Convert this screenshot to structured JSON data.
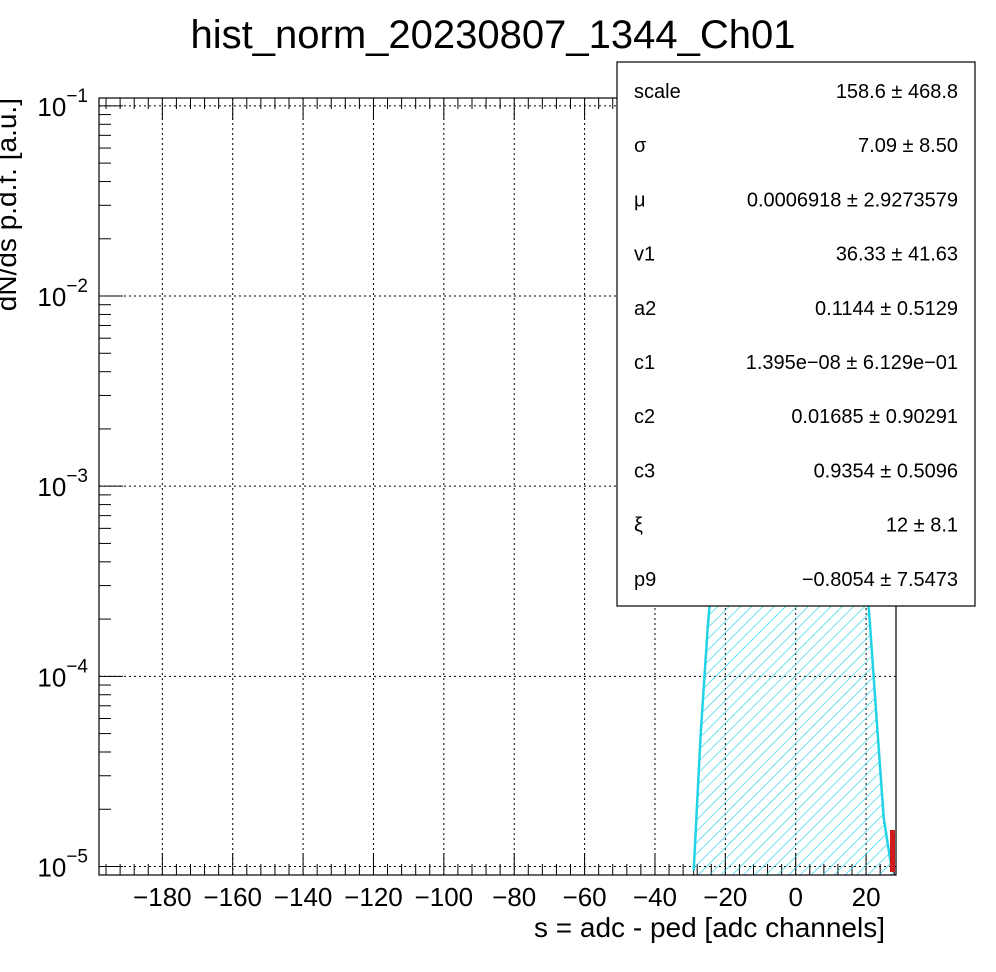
{
  "chart_data": {
    "type": "line",
    "title": "hist_norm_20230807_1344_Ch01",
    "xlabel": "s = adc - ped [adc channels]",
    "ylabel": "dN/ds p.d.f. [a.u.]",
    "xlim": [
      -198,
      28.5
    ],
    "ylim": [
      9.02e-06,
      0.11
    ],
    "y_scale": "log",
    "grid": true,
    "x_ticks": [
      {
        "value": -180,
        "label": "−180"
      },
      {
        "value": -160,
        "label": "−160"
      },
      {
        "value": -140,
        "label": "−140"
      },
      {
        "value": -120,
        "label": "−120"
      },
      {
        "value": -100,
        "label": "−100"
      },
      {
        "value": -80,
        "label": "−80"
      },
      {
        "value": -60,
        "label": "−60"
      },
      {
        "value": -40,
        "label": "−40"
      },
      {
        "value": -20,
        "label": "−20"
      },
      {
        "value": 0,
        "label": "0"
      },
      {
        "value": 20,
        "label": "20"
      }
    ],
    "y_ticks": [
      {
        "value": 0.1,
        "base": "10",
        "exp": "−1"
      },
      {
        "value": 0.01,
        "base": "10",
        "exp": "−2"
      },
      {
        "value": 0.001,
        "base": "10",
        "exp": "−3"
      },
      {
        "value": 0.0001,
        "base": "10",
        "exp": "−4"
      },
      {
        "value": 1e-05,
        "base": "10",
        "exp": "−5"
      }
    ],
    "fit_curve": {
      "color": "#22d3e6",
      "fill": "hatched",
      "x": [
        -29,
        -27,
        -25,
        -23,
        -21,
        -19,
        -17,
        -15,
        -13,
        -11,
        -9,
        -7,
        -5,
        -3,
        -1,
        1,
        3,
        5,
        7,
        9,
        11,
        13,
        15,
        17,
        19,
        21,
        23,
        25,
        27,
        28
      ],
      "y": [
        9.5e-06,
        5e-05,
        0.00018,
        0.0005,
        0.0012,
        0.0026,
        0.0049,
        0.0083,
        0.013,
        0.0188,
        0.0255,
        0.033,
        0.042,
        0.05,
        0.0535,
        0.052,
        0.046,
        0.037,
        0.028,
        0.019,
        0.012,
        0.0068,
        0.0034,
        0.0015,
        0.00058,
        0.0002,
        6e-05,
        1.8e-05,
        1.05e-05,
        9.5e-06
      ]
    },
    "stats": [
      {
        "name": "scale",
        "value": "158.6 ± 468.8"
      },
      {
        "name": "σ",
        "value": "7.09 ± 8.50"
      },
      {
        "name": "μ",
        "value": "0.0006918 ± 2.9273579"
      },
      {
        "name": "v1",
        "value": "36.33 ± 41.63"
      },
      {
        "name": "a2",
        "value": "0.1144 ± 0.5129"
      },
      {
        "name": "c1",
        "value": "1.395e−08 ± 6.129e−01"
      },
      {
        "name": "c2",
        "value": "0.01685 ± 0.90291"
      },
      {
        "name": "c3",
        "value": "0.9354 ± 0.5096"
      },
      {
        "name": "ξ",
        "value": "12 ± 8.1"
      },
      {
        "name": "p9",
        "value": "−0.8054 ± 7.5473"
      }
    ]
  }
}
